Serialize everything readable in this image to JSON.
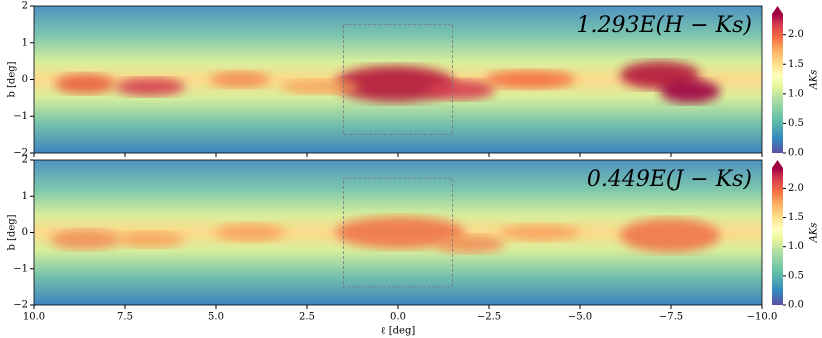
{
  "chart_data": [
    {
      "type": "heatmap",
      "annotation": "1.293E(H − Ks)",
      "ylabel": "b [deg]",
      "xlim": [
        10,
        -10
      ],
      "ylim": [
        -2,
        2
      ],
      "yticks": [
        {
          "value": -2,
          "label": "−2"
        },
        {
          "value": -1,
          "label": "−1"
        },
        0,
        1,
        2
      ],
      "highlight_box": {
        "x": [
          1.5,
          -1.5
        ],
        "y": [
          -1.5,
          1.5
        ]
      },
      "colorbar": {
        "label": "AKs",
        "lim": [
          0,
          2.35
        ],
        "colormap": "Spectral_r",
        "ticks": [
          {
            "value": 0,
            "label": "0.0"
          },
          {
            "value": 0.5,
            "label": "0.5"
          },
          {
            "value": 1,
            "label": "1.0"
          },
          {
            "value": 1.5,
            "label": "1.5"
          },
          {
            "value": 2,
            "label": "2.0"
          }
        ]
      }
    },
    {
      "type": "heatmap",
      "annotation": "0.449E(J − Ks)",
      "ylabel": "b [deg]",
      "xlabel": "ℓ [deg]",
      "xlim": [
        10,
        -10
      ],
      "ylim": [
        -2,
        2
      ],
      "xticks": [
        {
          "value": 10,
          "label": "10.0"
        },
        {
          "value": 7.5,
          "label": "7.5"
        },
        {
          "value": 5,
          "label": "5.0"
        },
        {
          "value": 2.5,
          "label": "2.5"
        },
        {
          "value": 0,
          "label": "0.0"
        },
        {
          "value": -2.5,
          "label": "−2.5"
        },
        {
          "value": -5,
          "label": "−5.0"
        },
        {
          "value": -7.5,
          "label": "−7.5"
        },
        {
          "value": -10,
          "label": "−10.0"
        }
      ],
      "yticks": [
        {
          "value": -2,
          "label": "−2"
        },
        {
          "value": -1,
          "label": "−1"
        },
        0,
        1,
        2
      ],
      "highlight_box": {
        "x": [
          1.5,
          -1.5
        ],
        "y": [
          -1.5,
          1.5
        ]
      },
      "colorbar": {
        "label": "AKs",
        "lim": [
          0,
          2.35
        ],
        "colormap": "Spectral_r",
        "ticks": [
          {
            "value": 0,
            "label": "0.0"
          },
          {
            "value": 0.5,
            "label": "0.5"
          },
          {
            "value": 1,
            "label": "1.0"
          },
          {
            "value": 1.5,
            "label": "1.5"
          },
          {
            "value": 2,
            "label": "2.0"
          }
        ]
      }
    }
  ]
}
